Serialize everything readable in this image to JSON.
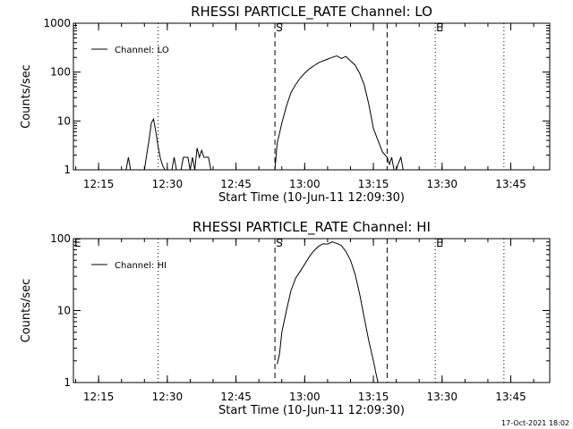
{
  "footer": {
    "timestamp": "17-Oct-2021 18:02"
  },
  "chart_data": [
    {
      "type": "line",
      "title": "RHESSI PARTICLE_RATE Channel: LO",
      "xlabel": "Start Time (10-Jun-11 12:09:30)",
      "ylabel": "Counts/sec",
      "yscale": "log",
      "ylim": [
        1,
        1000
      ],
      "xlim": [
        "12:09:30",
        "13:53:30"
      ],
      "xticks": [
        "12:15",
        "12:30",
        "12:45",
        "13:00",
        "13:15",
        "13:30",
        "13:45"
      ],
      "yticks": [
        "1",
        "10",
        "100",
        "1000"
      ],
      "legend": "top-left",
      "grid": false,
      "series": [
        {
          "name": "Channel: LO",
          "x": [
            "12:21",
            "12:21:30",
            "12:22",
            "12:25",
            "12:25:30",
            "12:26",
            "12:26:30",
            "12:27",
            "12:27:30",
            "12:28",
            "12:28:30",
            "12:29",
            "12:29:30",
            "12:30",
            "12:30:30",
            "12:31",
            "12:31:30",
            "12:32",
            "12:32:30",
            "12:33",
            "12:33:30",
            "12:34",
            "12:34:30",
            "12:35",
            "12:35:30",
            "12:36",
            "12:36:30",
            "12:37",
            "12:37:30",
            "12:38",
            "12:38:30",
            "12:39",
            "12:39:30",
            "12:40",
            "12:53:30",
            "12:54",
            "12:55",
            "12:56",
            "12:57",
            "12:58",
            "12:59",
            "13:00",
            "13:01",
            "13:02",
            "13:03",
            "13:04",
            "13:05",
            "13:06",
            "13:07",
            "13:08",
            "13:09",
            "13:10",
            "13:11",
            "13:12",
            "13:13",
            "13:14",
            "13:15",
            "13:16",
            "13:17",
            "13:18",
            "13:18:30",
            "13:19",
            "13:19:30",
            "13:20",
            "13:20:30",
            "13:21",
            "13:21:30",
            "13:22"
          ],
          "values": [
            1,
            1.8,
            1,
            1,
            2,
            4,
            9,
            11,
            6,
            3,
            1.7,
            1.2,
            1,
            1,
            1,
            1,
            1.8,
            1,
            1,
            1,
            1.8,
            1.8,
            1.8,
            1,
            1.8,
            1,
            2.8,
            1.8,
            2.5,
            1.8,
            1.8,
            1.8,
            1,
            1,
            1,
            3.5,
            9,
            20,
            38,
            55,
            75,
            95,
            115,
            135,
            155,
            170,
            185,
            200,
            215,
            190,
            210,
            170,
            140,
            95,
            55,
            22,
            7,
            4,
            2.3,
            1.8,
            1.3,
            1.8,
            1,
            1,
            1.4,
            1.8,
            1,
            1
          ]
        }
      ],
      "markers": [
        {
          "label": "S",
          "time": "12:53:30",
          "style": "dashed"
        },
        {
          "label": "",
          "time": "13:18",
          "style": "dashed"
        },
        {
          "label": "E",
          "time": "13:28:30",
          "style": "dotted"
        },
        {
          "label": "",
          "time": "12:28",
          "style": "dotted"
        },
        {
          "label": "",
          "time": "13:43:30",
          "style": "dotted"
        }
      ]
    },
    {
      "type": "line",
      "title": "RHESSI PARTICLE_RATE Channel: HI",
      "xlabel": "Start Time (10-Jun-11 12:09:30)",
      "ylabel": "Counts/sec",
      "yscale": "log",
      "ylim": [
        1,
        100
      ],
      "xlim": [
        "12:09:30",
        "13:53:30"
      ],
      "xticks": [
        "12:15",
        "12:30",
        "12:45",
        "13:00",
        "13:15",
        "13:30",
        "13:45"
      ],
      "yticks": [
        "1",
        "10",
        "100"
      ],
      "legend": "top-left",
      "grid": false,
      "series": [
        {
          "name": "Channel: HI",
          "x": [
            "12:54",
            "12:54:30",
            "12:55",
            "12:56",
            "12:57",
            "12:58",
            "12:59",
            "13:00",
            "13:01",
            "13:02",
            "13:03",
            "13:04",
            "13:05",
            "13:06",
            "13:07",
            "13:08",
            "13:09",
            "13:10",
            "13:11",
            "13:12",
            "13:13",
            "13:14",
            "13:15",
            "13:15:30",
            "13:16"
          ],
          "values": [
            1.8,
            2.5,
            5,
            10,
            19,
            28,
            35,
            44,
            56,
            68,
            78,
            85,
            84,
            90,
            86,
            80,
            66,
            50,
            32,
            17,
            8,
            3.8,
            2,
            1.4,
            1
          ]
        }
      ],
      "markers": [
        {
          "label": "E",
          "time": "12:09:30",
          "style": "solid"
        },
        {
          "label": "S",
          "time": "12:53:30",
          "style": "dashed"
        },
        {
          "label": "",
          "time": "13:18",
          "style": "dashed"
        },
        {
          "label": "E",
          "time": "13:28:30",
          "style": "dotted"
        },
        {
          "label": "",
          "time": "12:28",
          "style": "dotted"
        },
        {
          "label": "",
          "time": "13:43:30",
          "style": "dotted"
        }
      ]
    }
  ]
}
